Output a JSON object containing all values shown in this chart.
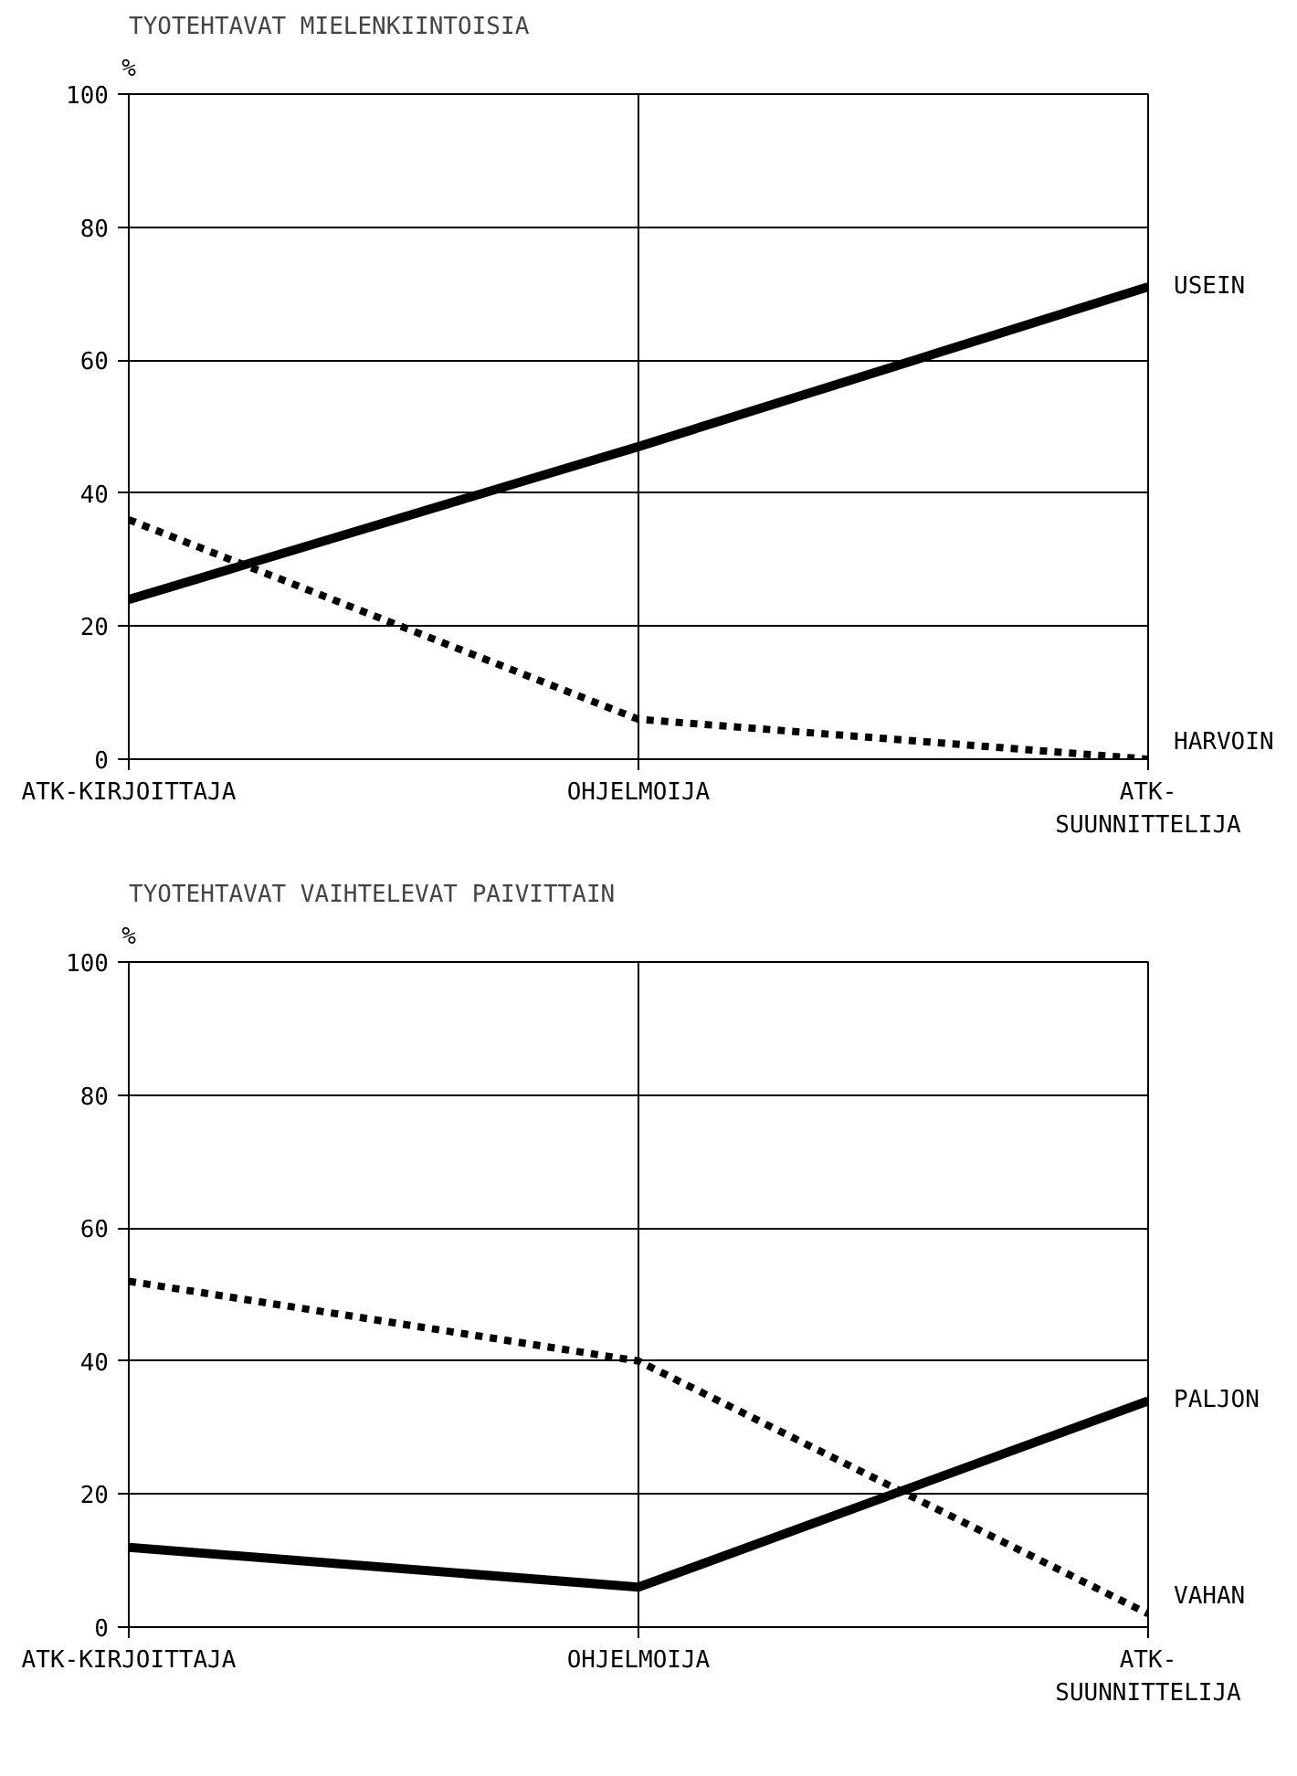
{
  "chart_data": [
    {
      "type": "line",
      "title": "TYOTEHTAVAT MIELENKIINTOISIA",
      "ylabel": "%",
      "categories": [
        "ATK-KIRJOITTAJA",
        "OHJELMOIJA",
        "ATK-SUUNNITTELIJA"
      ],
      "ylim": [
        0,
        100
      ],
      "yticks": [
        0,
        20,
        40,
        60,
        80,
        100
      ],
      "grid": true,
      "legend": false,
      "series": [
        {
          "name": "USEIN",
          "color": "#000000",
          "line_style": "solid",
          "values": [
            24,
            47,
            71
          ]
        },
        {
          "name": "HARVOIN",
          "color": "#000000",
          "line_style": "dotted",
          "values": [
            36,
            6,
            0
          ]
        }
      ]
    },
    {
      "type": "line",
      "title": "TYOTEHTAVAT VAIHTELEVAT PAIVITTAIN",
      "ylabel": "%",
      "categories": [
        "ATK-KIRJOITTAJA",
        "OHJELMOIJA",
        "ATK-SUUNNITTELIJA"
      ],
      "ylim": [
        0,
        100
      ],
      "yticks": [
        0,
        20,
        40,
        60,
        80,
        100
      ],
      "grid": true,
      "legend": false,
      "series": [
        {
          "name": "PALJON",
          "color": "#000000",
          "line_style": "solid",
          "values": [
            12,
            6,
            34
          ]
        },
        {
          "name": "VAHAN",
          "color": "#000000",
          "line_style": "dotted",
          "values": [
            52,
            40,
            2
          ]
        }
      ]
    }
  ]
}
